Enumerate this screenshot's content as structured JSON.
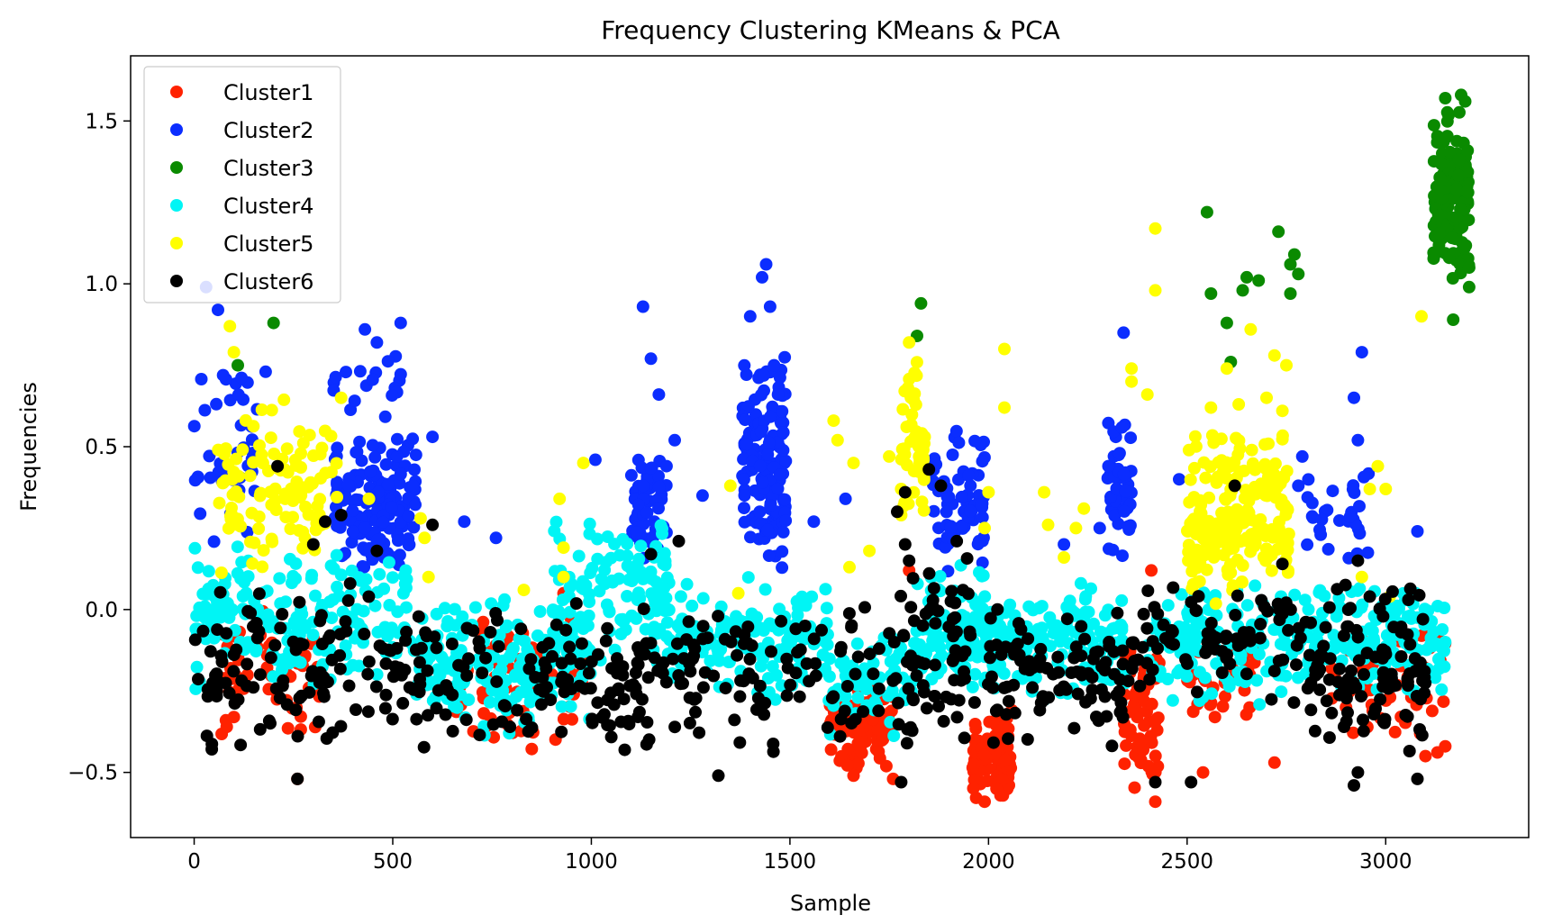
{
  "chart_data": {
    "type": "scatter",
    "title": "Frequency Clustering KMeans & PCA",
    "xlabel": "Sample",
    "ylabel": "Frequencies",
    "xlim": [
      -160,
      3360
    ],
    "ylim": [
      -0.7,
      1.7
    ],
    "xticks": [
      0,
      500,
      1000,
      1500,
      2000,
      2500,
      3000
    ],
    "yticks": [
      -0.5,
      0.0,
      0.5,
      1.0,
      1.5
    ],
    "xtick_labels": [
      "0",
      "500",
      "1000",
      "1500",
      "2000",
      "2500",
      "3000"
    ],
    "ytick_labels": [
      "−0.5",
      "0.0",
      "0.5",
      "1.0",
      "1.5"
    ],
    "legend_position": "upper-left",
    "grid": false,
    "series": [
      {
        "name": "Cluster1",
        "color": "#ff2200",
        "regions": [
          {
            "x": [
              60,
              320
            ],
            "y": [
              -0.4,
              0.0
            ],
            "n": 60
          },
          {
            "x": [
              640,
              980
            ],
            "y": [
              -0.45,
              0.0
            ],
            "n": 70
          },
          {
            "x": [
              1600,
              1760
            ],
            "y": [
              -0.5,
              -0.2
            ],
            "n": 110
          },
          {
            "x": [
              1960,
              2060
            ],
            "y": [
              -0.6,
              -0.3
            ],
            "n": 90
          },
          {
            "x": [
              2340,
              2430
            ],
            "y": [
              -0.55,
              -0.1
            ],
            "n": 60
          },
          {
            "x": [
              2500,
              2700
            ],
            "y": [
              -0.35,
              -0.05
            ],
            "n": 30
          },
          {
            "x": [
              2850,
              3150
            ],
            "y": [
              -0.45,
              0.0
            ],
            "n": 50
          }
        ],
        "points": [
          [
            80,
            -0.34
          ],
          [
            82,
            -0.36
          ],
          [
            100,
            -0.33
          ],
          [
            260,
            -0.52
          ],
          [
            1660,
            -0.51
          ],
          [
            1760,
            -0.52
          ],
          [
            1990,
            -0.59
          ],
          [
            2020,
            -0.55
          ],
          [
            2420,
            -0.59
          ],
          [
            2410,
            0.12
          ],
          [
            2540,
            -0.5
          ],
          [
            2720,
            -0.47
          ],
          [
            3100,
            -0.45
          ],
          [
            3150,
            -0.42
          ],
          [
            2900,
            -0.3
          ],
          [
            2570,
            -0.33
          ],
          [
            1800,
            0.12
          ],
          [
            930,
            0.05
          ]
        ]
      },
      {
        "name": "Cluster2",
        "color": "#0b2dff",
        "regions": [
          {
            "x": [
              0,
              160
            ],
            "y": [
              0.2,
              0.8
            ],
            "n": 40
          },
          {
            "x": [
              350,
              560
            ],
            "y": [
              0.1,
              0.55
            ],
            "n": 150
          },
          {
            "x": [
              350,
              520
            ],
            "y": [
              0.55,
              0.85
            ],
            "n": 18
          },
          {
            "x": [
              1100,
              1190
            ],
            "y": [
              0.1,
              0.5
            ],
            "n": 60
          },
          {
            "x": [
              1380,
              1490
            ],
            "y": [
              0.1,
              0.8
            ],
            "n": 140
          },
          {
            "x": [
              1860,
              1990
            ],
            "y": [
              0.1,
              0.6
            ],
            "n": 70
          },
          {
            "x": [
              2300,
              2360
            ],
            "y": [
              0.15,
              0.65
            ],
            "n": 50
          },
          {
            "x": [
              2800,
              2960
            ],
            "y": [
              0.15,
              0.45
            ],
            "n": 30
          }
        ],
        "points": [
          [
            30,
            0.99
          ],
          [
            60,
            0.92
          ],
          [
            180,
            0.73
          ],
          [
            1130,
            0.93
          ],
          [
            1150,
            0.77
          ],
          [
            1170,
            0.66
          ],
          [
            1440,
            1.06
          ],
          [
            1430,
            1.02
          ],
          [
            1450,
            0.93
          ],
          [
            1400,
            0.9
          ],
          [
            2340,
            0.85
          ],
          [
            2940,
            0.79
          ],
          [
            3080,
            0.24
          ],
          [
            1010,
            0.46
          ],
          [
            1460,
            0.75
          ],
          [
            1470,
            0.66
          ],
          [
            2330,
            0.48
          ],
          [
            2790,
            0.47
          ],
          [
            1210,
            0.52
          ],
          [
            1280,
            0.35
          ],
          [
            1560,
            0.27
          ],
          [
            1640,
            0.34
          ],
          [
            2190,
            0.2
          ],
          [
            2280,
            0.25
          ],
          [
            2520,
            0.18
          ],
          [
            2480,
            0.4
          ],
          [
            2780,
            0.38
          ],
          [
            2920,
            0.65
          ],
          [
            2930,
            0.52
          ],
          [
            680,
            0.27
          ],
          [
            760,
            0.22
          ],
          [
            600,
            0.53
          ],
          [
            520,
            0.88
          ],
          [
            430,
            0.86
          ],
          [
            460,
            0.82
          ]
        ]
      },
      {
        "name": "Cluster3",
        "color": "#0a8a00",
        "regions": [
          {
            "x": [
              3120,
              3210
            ],
            "y": [
              1.0,
              1.55
            ],
            "n": 160
          }
        ],
        "points": [
          [
            200,
            0.88
          ],
          [
            110,
            0.75
          ],
          [
            1830,
            0.94
          ],
          [
            1820,
            0.84
          ],
          [
            2550,
            1.22
          ],
          [
            2560,
            0.97
          ],
          [
            2600,
            0.88
          ],
          [
            2610,
            0.76
          ],
          [
            2640,
            0.98
          ],
          [
            2650,
            1.02
          ],
          [
            2680,
            1.01
          ],
          [
            2730,
            1.16
          ],
          [
            2760,
            1.06
          ],
          [
            2770,
            1.09
          ],
          [
            2780,
            1.03
          ],
          [
            2760,
            0.97
          ],
          [
            3170,
            0.89
          ],
          [
            3210,
            0.99
          ],
          [
            3210,
            1.05
          ],
          [
            3160,
            1.08
          ],
          [
            3150,
            1.57
          ],
          [
            3190,
            1.58
          ],
          [
            3200,
            1.56
          ]
        ]
      },
      {
        "name": "Cluster4",
        "color": "#00f5f5",
        "regions": [
          {
            "x": [
              0,
              560
            ],
            "y": [
              -0.25,
              0.2
            ],
            "n": 180
          },
          {
            "x": [
              560,
              1000
            ],
            "y": [
              -0.4,
              0.05
            ],
            "n": 200
          },
          {
            "x": [
              900,
              1200
            ],
            "y": [
              -0.2,
              0.3
            ],
            "n": 130
          },
          {
            "x": [
              1200,
              1600
            ],
            "y": [
              -0.3,
              0.1
            ],
            "n": 150
          },
          {
            "x": [
              1600,
              1800
            ],
            "y": [
              -0.4,
              -0.05
            ],
            "n": 60
          },
          {
            "x": [
              1800,
              2000
            ],
            "y": [
              -0.3,
              0.15
            ],
            "n": 110
          },
          {
            "x": [
              2000,
              2350
            ],
            "y": [
              -0.3,
              0.1
            ],
            "n": 140
          },
          {
            "x": [
              2400,
              3150
            ],
            "y": [
              -0.3,
              0.1
            ],
            "n": 280
          }
        ],
        "points": []
      },
      {
        "name": "Cluster5",
        "color": "#ffff00",
        "regions": [
          {
            "x": [
              60,
              360
            ],
            "y": [
              0.1,
              0.65
            ],
            "n": 110
          },
          {
            "x": [
              1780,
              1840
            ],
            "y": [
              0.2,
              0.8
            ],
            "n": 50
          },
          {
            "x": [
              2500,
              2760
            ],
            "y": [
              0.0,
              0.55
            ],
            "n": 230
          }
        ],
        "points": [
          [
            90,
            0.87
          ],
          [
            100,
            0.79
          ],
          [
            1800,
            0.82
          ],
          [
            2420,
            1.17
          ],
          [
            2420,
            0.98
          ],
          [
            3090,
            0.9
          ],
          [
            2040,
            0.8
          ],
          [
            2040,
            0.62
          ],
          [
            2360,
            0.74
          ],
          [
            2360,
            0.7
          ],
          [
            2400,
            0.66
          ],
          [
            2660,
            0.86
          ],
          [
            2720,
            0.78
          ],
          [
            2750,
            0.75
          ],
          [
            2740,
            0.61
          ],
          [
            1610,
            0.58
          ],
          [
            1620,
            0.52
          ],
          [
            1660,
            0.45
          ],
          [
            1650,
            0.13
          ],
          [
            1700,
            0.18
          ],
          [
            1750,
            0.47
          ],
          [
            1780,
            0.37
          ],
          [
            1780,
            0.29
          ],
          [
            1990,
            0.25
          ],
          [
            2000,
            0.36
          ],
          [
            2190,
            0.16
          ],
          [
            2220,
            0.25
          ],
          [
            2240,
            0.31
          ],
          [
            2140,
            0.36
          ],
          [
            2150,
            0.26
          ],
          [
            2960,
            0.37
          ],
          [
            2980,
            0.44
          ],
          [
            3000,
            0.37
          ],
          [
            3010,
            0.04
          ],
          [
            2940,
            0.1
          ],
          [
            370,
            0.65
          ],
          [
            440,
            0.34
          ],
          [
            570,
            0.28
          ],
          [
            580,
            0.22
          ],
          [
            590,
            0.1
          ],
          [
            920,
            0.34
          ],
          [
            930,
            0.19
          ],
          [
            930,
            0.1
          ],
          [
            980,
            0.45
          ],
          [
            1350,
            0.38
          ],
          [
            1370,
            0.05
          ],
          [
            830,
            0.06
          ],
          [
            2560,
            0.62
          ],
          [
            2600,
            0.74
          ],
          [
            2630,
            0.63
          ],
          [
            2700,
            0.65
          ]
        ]
      },
      {
        "name": "Cluster6",
        "color": "#000000",
        "regions": [
          {
            "x": [
              0,
              400
            ],
            "y": [
              -0.45,
              0.1
            ],
            "n": 90
          },
          {
            "x": [
              400,
              1000
            ],
            "y": [
              -0.45,
              0.05
            ],
            "n": 110
          },
          {
            "x": [
              1000,
              1400
            ],
            "y": [
              -0.45,
              0.05
            ],
            "n": 100
          },
          {
            "x": [
              1400,
              1800
            ],
            "y": [
              -0.45,
              0.05
            ],
            "n": 60
          },
          {
            "x": [
              1780,
              1950
            ],
            "y": [
              -0.45,
              0.2
            ],
            "n": 60
          },
          {
            "x": [
              1950,
              2400
            ],
            "y": [
              -0.45,
              0.05
            ],
            "n": 110
          },
          {
            "x": [
              2400,
              2800
            ],
            "y": [
              -0.3,
              0.1
            ],
            "n": 70
          },
          {
            "x": [
              2800,
              3100
            ],
            "y": [
              -0.45,
              0.1
            ],
            "n": 110
          }
        ],
        "points": [
          [
            210,
            0.44
          ],
          [
            260,
            -0.52
          ],
          [
            1320,
            -0.51
          ],
          [
            1770,
            0.3
          ],
          [
            1790,
            0.36
          ],
          [
            1850,
            0.43
          ],
          [
            1880,
            0.38
          ],
          [
            2620,
            0.38
          ],
          [
            2920,
            -0.54
          ],
          [
            2930,
            -0.5
          ],
          [
            3080,
            -0.52
          ],
          [
            2420,
            -0.53
          ],
          [
            2510,
            -0.53
          ],
          [
            1780,
            -0.53
          ],
          [
            1920,
            0.21
          ],
          [
            1220,
            0.21
          ],
          [
            1150,
            0.17
          ],
          [
            600,
            0.26
          ],
          [
            300,
            0.2
          ],
          [
            330,
            0.27
          ],
          [
            370,
            0.29
          ],
          [
            460,
            0.18
          ],
          [
            2930,
            0.15
          ],
          [
            2740,
            0.14
          ],
          [
            2960,
            0.04
          ],
          [
            1790,
            0.2
          ],
          [
            1800,
            0.15
          ]
        ]
      }
    ]
  }
}
